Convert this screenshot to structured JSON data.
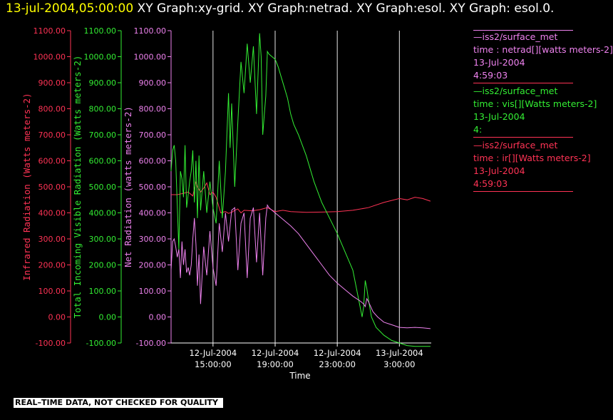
{
  "header": {
    "timestamp": "13-jul-2004,05:00:00",
    "graphs": "XY Graph:xy-grid.  XY Graph:netrad.  XY Graph:esol.  XY Graph: esol.0."
  },
  "legend": [
    {
      "title": "—iss2/surface_met",
      "field": "time : netrad[][watts meters-2]",
      "date": "13-Jul-2004",
      "time": "4:59:03",
      "color": "#ee82ee"
    },
    {
      "title": "—iss2/surface_met",
      "field": "time : vis[][Watts meters-2]",
      "date": "13-Jul-2004",
      "time": "4:",
      "color": "#33ee33"
    },
    {
      "title": "—iss2/surface_met",
      "field": "time : ir[][Watts meters-2]",
      "date": "13-Jul-2004",
      "time": "4:59:03",
      "color": "#ff3355"
    }
  ],
  "footer": "REAL–TIME DATA, NOT CHECKED FOR QUALITY",
  "chart_data": {
    "type": "line",
    "xlabel": "Time",
    "x_ticks": [
      {
        "date": "12-Jul-2004",
        "time": "15:00:00",
        "hours": 0
      },
      {
        "date": "12-Jul-2004",
        "time": "19:00:00",
        "hours": 4
      },
      {
        "date": "12-Jul-2004",
        "time": "23:00:00",
        "hours": 8
      },
      {
        "date": "13-Jul-2004",
        "time": "3:00:00",
        "hours": 12
      }
    ],
    "xlim_hours": [
      -2.7,
      14.05
    ],
    "ylim": [
      -100,
      1100
    ],
    "y_ticks": [
      "-100.00",
      "0.00",
      "100.00",
      "200.00",
      "300.00",
      "400.00",
      "500.00",
      "600.00",
      "700.00",
      "800.00",
      "900.00",
      "1000.00",
      "1100.00"
    ],
    "axes": [
      {
        "label": "Infrared Radiation (Watts meters-2)",
        "color": "#ff3355"
      },
      {
        "label": "Total Incoming Visible Radiation (Watts meters-2)",
        "color": "#33ee33"
      },
      {
        "label": "Net Radiation (watts meters-2)",
        "color": "#ee82ee"
      }
    ],
    "series": [
      {
        "name": "ir",
        "color": "#ff3355",
        "x": [
          -2.7,
          -2.3,
          -1.9,
          -1.6,
          -1.3,
          -1.1,
          -1.0,
          -0.8,
          -0.6,
          -0.4,
          -0.2,
          0.0,
          0.2,
          0.5,
          0.8,
          1.0,
          1.2,
          1.4,
          1.6,
          1.8,
          2.0,
          2.5,
          3.0,
          3.5,
          4.0,
          4.5,
          5.0,
          6.0,
          7.0,
          8.0,
          9.0,
          10.0,
          11.0,
          12.0,
          12.5,
          13.0,
          13.5,
          14.0
        ],
        "y": [
          470,
          470,
          475,
          480,
          465,
          520,
          500,
          480,
          495,
          515,
          470,
          480,
          460,
          400,
          405,
          398,
          402,
          410,
          415,
          400,
          410,
          408,
          412,
          420,
          405,
          410,
          405,
          402,
          403,
          405,
          410,
          420,
          440,
          455,
          450,
          460,
          455,
          445
        ]
      },
      {
        "name": "vis",
        "color": "#33ee33",
        "x": [
          -2.7,
          -2.6,
          -2.5,
          -2.4,
          -2.3,
          -2.2,
          -2.1,
          -2.0,
          -1.9,
          -1.8,
          -1.7,
          -1.6,
          -1.5,
          -1.4,
          -1.3,
          -1.2,
          -1.1,
          -1.0,
          -0.9,
          -0.8,
          -0.6,
          -0.4,
          -0.2,
          0.0,
          0.2,
          0.4,
          0.6,
          0.8,
          1.0,
          1.1,
          1.2,
          1.4,
          1.6,
          1.8,
          2.0,
          2.2,
          2.4,
          2.6,
          2.8,
          3.0,
          3.1,
          3.2,
          3.4,
          3.5,
          3.6,
          3.8,
          4.0,
          4.2,
          4.4,
          4.6,
          4.8,
          5.0,
          5.2,
          5.5,
          6.0,
          6.5,
          7.0,
          7.5,
          8.0,
          8.5,
          9.0,
          9.3,
          9.6,
          9.7,
          9.8,
          9.9,
          10.0,
          10.2,
          10.5,
          11.0,
          11.5,
          12.0,
          12.5,
          13.0,
          13.5,
          14.0
        ],
        "y": [
          560,
          640,
          660,
          600,
          430,
          260,
          560,
          530,
          460,
          660,
          420,
          470,
          520,
          560,
          640,
          440,
          600,
          380,
          620,
          410,
          560,
          400,
          520,
          420,
          360,
          600,
          380,
          560,
          860,
          650,
          820,
          500,
          750,
          980,
          860,
          1050,
          900,
          1040,
          780,
          1090,
          1000,
          700,
          850,
          1020,
          1010,
          1000,
          990,
          960,
          920,
          880,
          840,
          780,
          740,
          700,
          620,
          520,
          440,
          380,
          320,
          250,
          180,
          90,
          0,
          40,
          140,
          110,
          70,
          0,
          -40,
          -70,
          -90,
          -100,
          -110,
          -113,
          -113,
          -113
        ]
      },
      {
        "name": "netrad",
        "color": "#ee82ee",
        "x": [
          -2.7,
          -2.6,
          -2.5,
          -2.4,
          -2.3,
          -2.2,
          -2.1,
          -2.0,
          -1.9,
          -1.8,
          -1.7,
          -1.6,
          -1.5,
          -1.4,
          -1.3,
          -1.2,
          -1.1,
          -1.0,
          -0.9,
          -0.8,
          -0.6,
          -0.4,
          -0.2,
          0.0,
          0.2,
          0.4,
          0.6,
          0.8,
          1.0,
          1.2,
          1.4,
          1.6,
          1.8,
          2.0,
          2.2,
          2.4,
          2.6,
          2.8,
          3.0,
          3.2,
          3.4,
          3.5,
          3.6,
          3.8,
          4.0,
          4.2,
          4.5,
          5.0,
          5.5,
          6.0,
          6.5,
          7.0,
          7.5,
          8.0,
          8.5,
          9.0,
          9.5,
          9.7,
          9.8,
          9.9,
          10.0,
          10.3,
          10.6,
          11.0,
          11.5,
          12.0,
          12.5,
          13.0,
          13.5,
          14.0
        ],
        "y": [
          180,
          290,
          300,
          270,
          230,
          260,
          150,
          290,
          200,
          260,
          170,
          190,
          160,
          200,
          300,
          380,
          280,
          120,
          240,
          50,
          270,
          160,
          330,
          190,
          120,
          360,
          250,
          400,
          290,
          410,
          420,
          180,
          360,
          400,
          150,
          380,
          420,
          210,
          400,
          160,
          380,
          430,
          420,
          410,
          400,
          390,
          375,
          350,
          320,
          280,
          240,
          200,
          160,
          130,
          105,
          80,
          60,
          50,
          40,
          70,
          60,
          20,
          0,
          -20,
          -30,
          -40,
          -42,
          -40,
          -42,
          -45
        ]
      }
    ]
  }
}
